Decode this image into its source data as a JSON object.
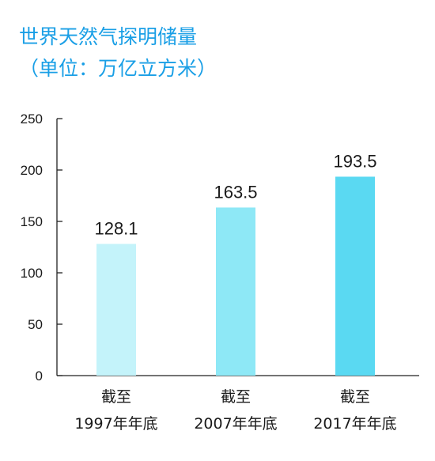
{
  "chart_data": {
    "type": "bar",
    "title_lines": [
      "世界天然气探明储量",
      "（单位：万亿立方米）"
    ],
    "categories": [
      [
        "截至",
        "1997年年底"
      ],
      [
        "截至",
        "2007年年底"
      ],
      [
        "截至",
        "2017年年底"
      ]
    ],
    "values": [
      128.1,
      163.5,
      193.5
    ],
    "value_labels": [
      "128.1",
      "163.5",
      "193.5"
    ],
    "bar_colors": [
      "#c4f3fa",
      "#8ee8f6",
      "#5ad9f2"
    ],
    "title_color": "#1a9fe6",
    "ylim": [
      0,
      250
    ],
    "yticks": [
      0,
      50,
      100,
      150,
      200,
      250
    ],
    "grid": false,
    "legend": "none"
  }
}
